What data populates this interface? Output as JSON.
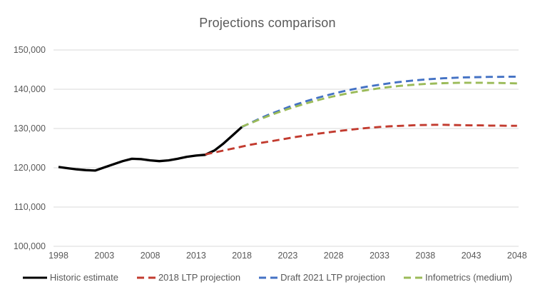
{
  "colors": {
    "background": "#ffffff",
    "grid": "#d9d9d9",
    "text": "#595959",
    "historic": "#000000",
    "ltp2018": "#c23b2f",
    "draft2021": "#4472c4",
    "infometrics": "#9bbb59"
  },
  "chart_data": {
    "type": "line",
    "title": "Projections comparison",
    "xlabel": "",
    "ylabel": "",
    "ylim": [
      100000,
      150000
    ],
    "grid": true,
    "legend_position": "bottom",
    "yticks": [
      {
        "value": 150000,
        "label": "150,000"
      },
      {
        "value": 140000,
        "label": "140,000"
      },
      {
        "value": 130000,
        "label": "130,000"
      },
      {
        "value": 120000,
        "label": "120,000"
      },
      {
        "value": 110000,
        "label": "110,000"
      },
      {
        "value": 100000,
        "label": "100,000"
      }
    ],
    "xticks": [
      1998,
      2003,
      2008,
      2013,
      2018,
      2023,
      2028,
      2033,
      2038,
      2043,
      2048
    ],
    "series": [
      {
        "name": "Historic estimate",
        "color_key": "historic",
        "dash": "solid",
        "start_year": 1998,
        "values": [
          120200,
          119900,
          119600,
          119400,
          119300,
          120100,
          120900,
          121700,
          122300,
          122200,
          121900,
          121700,
          121900,
          122300,
          122800,
          123100,
          123300,
          124400,
          126200,
          128300,
          130400
        ]
      },
      {
        "name": "2018 LTP projection",
        "color_key": "ltp2018",
        "dash": "dashed",
        "start_year": 2014,
        "values": [
          123400,
          123900,
          124400,
          124900,
          125400,
          125900,
          126300,
          126700,
          127100,
          127500,
          127900,
          128250,
          128600,
          128900,
          129200,
          129500,
          129750,
          130000,
          130200,
          130400,
          130550,
          130650,
          130750,
          130850,
          130900,
          130950,
          130950,
          130900,
          130850,
          130800,
          130800,
          130750,
          130750,
          130700,
          130700
        ]
      },
      {
        "name": "Draft 2021 LTP projection",
        "color_key": "draft2021",
        "dash": "dashed",
        "start_year": 2018,
        "values": [
          130400,
          131500,
          132600,
          133600,
          134500,
          135400,
          136200,
          136950,
          137650,
          138300,
          138900,
          139450,
          139950,
          140400,
          140800,
          141150,
          141500,
          141800,
          142050,
          142300,
          142500,
          142650,
          142800,
          142900,
          143000,
          143050,
          143100,
          143150,
          143150,
          143200,
          143200
        ]
      },
      {
        "name": "Infometrics (medium)",
        "color_key": "infometrics",
        "dash": "dashed",
        "start_year": 2018,
        "values": [
          130500,
          131400,
          132400,
          133300,
          134150,
          134950,
          135700,
          136400,
          137050,
          137650,
          138200,
          138700,
          139150,
          139550,
          139900,
          140250,
          140550,
          140800,
          141000,
          141200,
          141350,
          141450,
          141550,
          141600,
          141650,
          141650,
          141650,
          141600,
          141600,
          141550,
          141500
        ]
      }
    ]
  }
}
